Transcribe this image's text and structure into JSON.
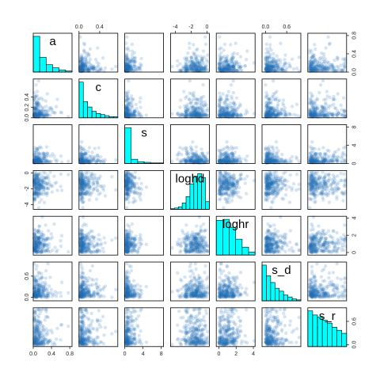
{
  "chart_data": {
    "type": "scatter",
    "title": "",
    "variables": [
      "a",
      "c",
      "s",
      "loghd",
      "loghr",
      "s_d",
      "s_r"
    ],
    "hist_fill": "#00ffff",
    "point_color": "#1f6fb5",
    "ranges": {
      "a": [
        0,
        0.85
      ],
      "c": [
        0,
        0.75
      ],
      "s": [
        0,
        8.5
      ],
      "loghd": [
        -4.6,
        0.3
      ],
      "loghr": [
        -0.3,
        4.2
      ],
      "s_d": [
        -0.1,
        1.0
      ],
      "s_r": [
        -0.05,
        0.95
      ]
    },
    "hist_counts": {
      "a": [
        34,
        14,
        7,
        4,
        2,
        1
      ],
      "c": [
        33,
        15,
        10,
        6,
        4,
        3,
        2,
        1,
        1
      ],
      "s": [
        58,
        7,
        3,
        2,
        1,
        1
      ],
      "loghd": [
        1,
        2,
        4,
        10,
        20,
        40,
        52,
        56,
        50,
        12
      ],
      "loghr": [
        35,
        36,
        28,
        16,
        8,
        3
      ],
      "s_d": [
        37,
        26,
        19,
        13,
        10,
        6,
        4,
        2,
        1
      ],
      "s_r": [
        35,
        31,
        29,
        26,
        23,
        19,
        16,
        13
      ]
    },
    "axis_ticks": {
      "top": {
        "c": [
          "0.0",
          "0.4"
        ],
        "loghd": [
          "-4",
          "-2",
          "0"
        ],
        "s_d": [
          "0.0",
          "0.6"
        ]
      },
      "bottom": {
        "a": [
          "0.0",
          "0.4",
          "0.8"
        ],
        "s": [
          "0",
          "4",
          "8"
        ],
        "loghr": [
          "0",
          "2",
          "4"
        ]
      },
      "left": {
        "c": [
          "0.0",
          "0.2",
          "0.4"
        ],
        "loghd": [
          "-4",
          "-2",
          "0"
        ],
        "s_d": [
          "0.0",
          "0.6"
        ]
      },
      "right": {
        "a": [
          "0.0",
          "0.4",
          "0.8"
        ],
        "s": [
          "0",
          "4",
          "8"
        ],
        "loghr": [
          "0",
          "2",
          "4"
        ],
        "s_r": [
          "0.0",
          "0.6"
        ]
      }
    },
    "tick_values": {
      "top": {
        "c": [
          0.0,
          0.4
        ],
        "loghd": [
          -4,
          -2,
          0
        ],
        "s_d": [
          0.0,
          0.6
        ]
      },
      "bottom": {
        "a": [
          0.0,
          0.4,
          0.8
        ],
        "s": [
          0,
          4,
          8
        ],
        "loghr": [
          0,
          2,
          4
        ]
      },
      "left": {
        "c": [
          0.0,
          0.2,
          0.4
        ],
        "loghd": [
          -4,
          -2,
          0
        ],
        "s_d": [
          0.0,
          0.6
        ]
      },
      "right": {
        "a": [
          0.0,
          0.4,
          0.8
        ],
        "s": [
          0,
          4,
          8
        ],
        "loghr": [
          0,
          2,
          4
        ],
        "s_r": [
          0.0,
          0.6
        ]
      }
    },
    "points_per_panel": 260
  }
}
